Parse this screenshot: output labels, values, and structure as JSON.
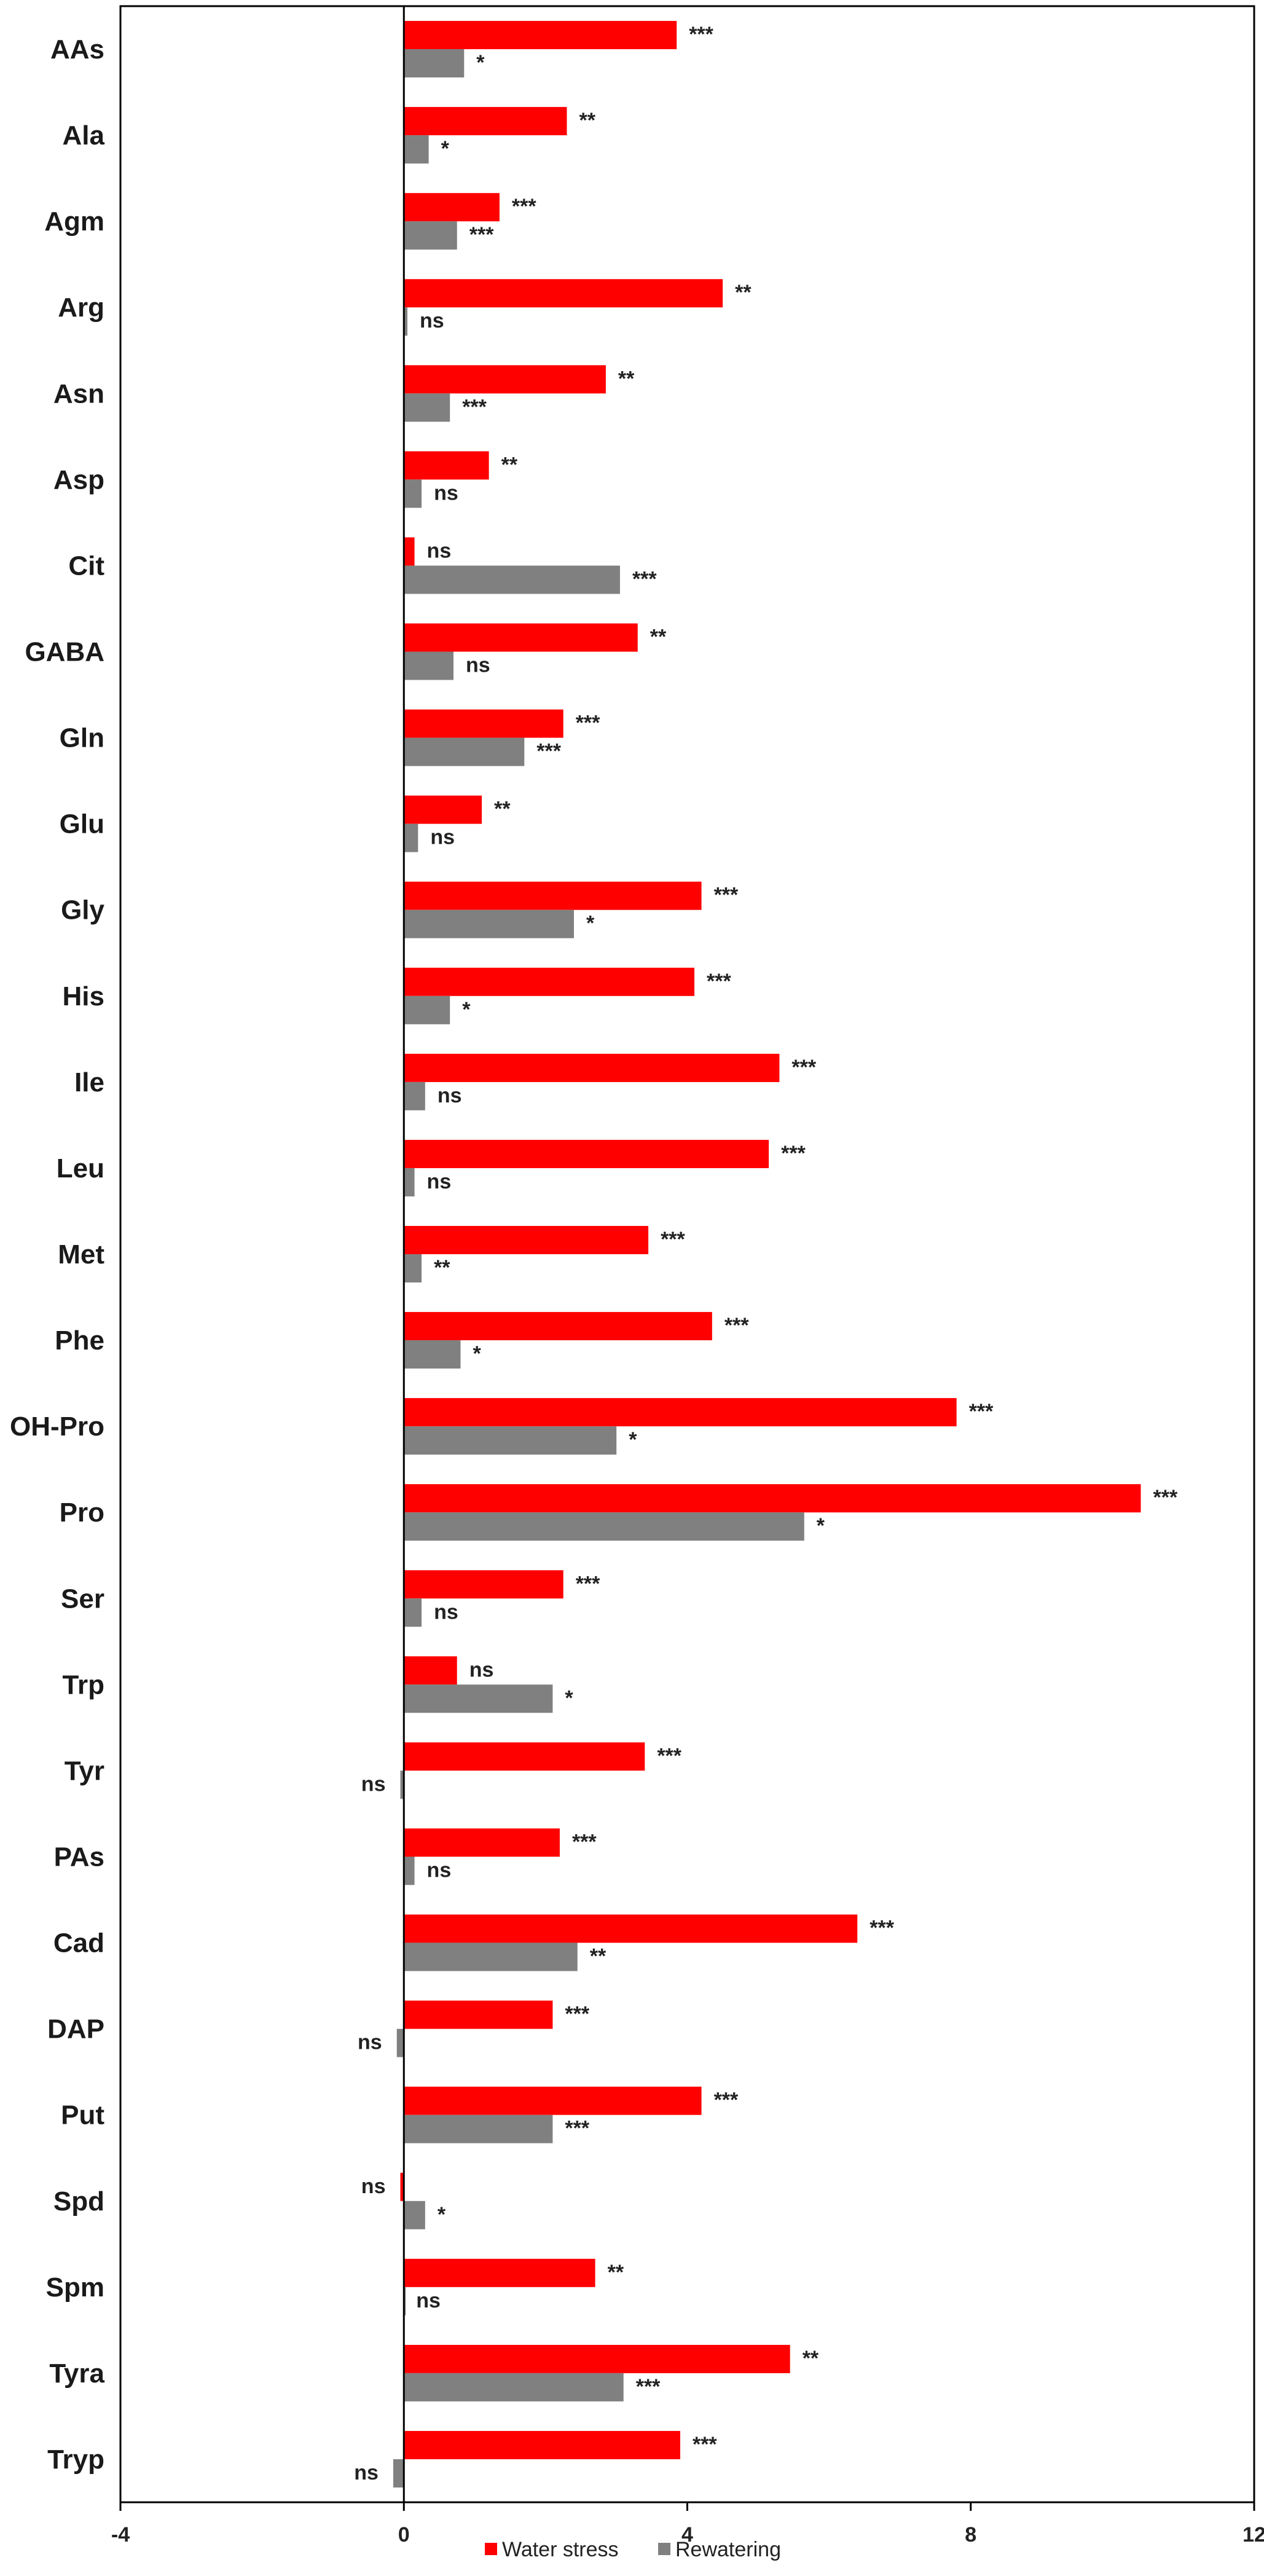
{
  "chart_data": {
    "type": "bar",
    "orientation": "horizontal",
    "grid": false,
    "legend_position": "bottom-center",
    "xlim": [
      -4,
      12
    ],
    "xticks": [
      -4,
      0,
      4,
      8,
      12
    ],
    "categories": [
      "AAs",
      "Ala",
      "Agm",
      "Arg",
      "Asn",
      "Asp",
      "Cit",
      "GABA",
      "Gln",
      "Glu",
      "Gly",
      "His",
      "Ile",
      "Leu",
      "Met",
      "Phe",
      "OH-Pro",
      "Pro",
      "Ser",
      "Trp",
      "Tyr",
      "PAs",
      "Cad",
      "DAP",
      "Put",
      "Spd",
      "Spm",
      "Tyra",
      "Tryp"
    ],
    "series": [
      {
        "name": "Water stress",
        "color": "#ff0000",
        "values": [
          3.85,
          2.3,
          1.35,
          4.5,
          2.85,
          1.2,
          0.15,
          3.3,
          2.25,
          1.1,
          4.2,
          4.1,
          5.3,
          5.15,
          3.45,
          4.35,
          7.8,
          10.4,
          2.25,
          0.75,
          3.4,
          2.2,
          6.4,
          2.1,
          4.2,
          -0.05,
          2.7,
          5.45,
          3.9
        ],
        "significance": [
          "***",
          "**",
          "***",
          "**",
          "**",
          "**",
          "ns",
          "**",
          "***",
          "**",
          "***",
          "***",
          "***",
          "***",
          "***",
          "***",
          "***",
          "***",
          "***",
          "ns",
          "***",
          "***",
          "***",
          "***",
          "***",
          "ns",
          "**",
          "**",
          "***"
        ]
      },
      {
        "name": "Rewatering",
        "color": "#808080",
        "values": [
          0.85,
          0.35,
          0.75,
          0.05,
          0.65,
          0.25,
          3.05,
          0.7,
          1.7,
          0.2,
          2.4,
          0.65,
          0.3,
          0.15,
          0.25,
          0.8,
          3.0,
          5.65,
          0.25,
          2.1,
          -0.05,
          0.15,
          2.45,
          -0.1,
          2.1,
          0.3,
          0.0,
          3.1,
          -0.15
        ],
        "significance": [
          "*",
          "*",
          "***",
          "ns",
          "***",
          "ns",
          "***",
          "ns",
          "***",
          "ns",
          "*",
          "*",
          "ns",
          "ns",
          "**",
          "*",
          "*",
          "*",
          "ns",
          "*",
          "ns",
          "ns",
          "**",
          "ns",
          "***",
          "*",
          "ns",
          "***",
          "ns"
        ]
      }
    ]
  }
}
